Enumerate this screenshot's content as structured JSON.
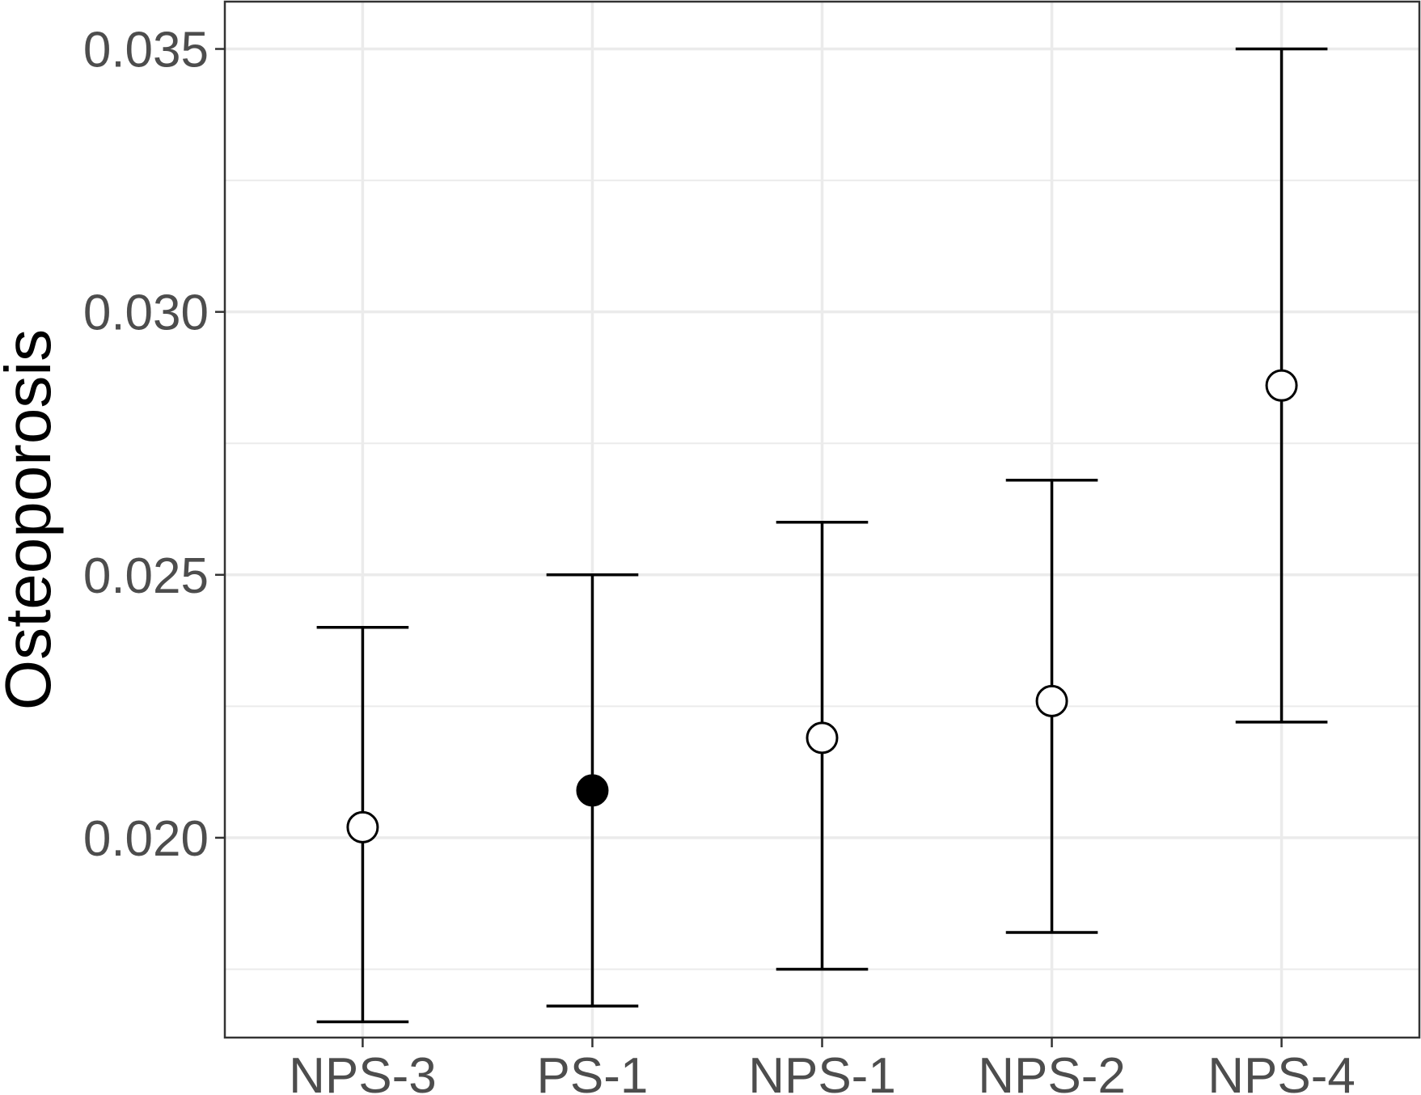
{
  "chart_data": {
    "type": "scatter",
    "subtype": "point-with-error-bars",
    "title": "",
    "xlabel": "",
    "ylabel": "Osteoporosis",
    "categories": [
      "NPS-3",
      "PS-1",
      "NPS-1",
      "NPS-2",
      "NPS-4"
    ],
    "values": [
      0.0202,
      0.0209,
      0.0219,
      0.0226,
      0.0286
    ],
    "lower": [
      0.0165,
      0.0168,
      0.0175,
      0.0182,
      0.0222
    ],
    "upper": [
      0.024,
      0.025,
      0.026,
      0.0268,
      0.035
    ],
    "filled": [
      false,
      true,
      false,
      false,
      false
    ],
    "ylim": [
      0.0162,
      0.0359
    ],
    "yticks": [
      0.02,
      0.025,
      0.03,
      0.035
    ],
    "ytick_labels": [
      "0.020",
      "0.025",
      "0.030",
      "0.035"
    ],
    "grid": true,
    "legend": "none",
    "colors": {
      "point": "#000000",
      "errorbar": "#000000",
      "grid": "#ebebeb",
      "panel_border": "#333333",
      "tick_label": "#4d4d4d"
    }
  }
}
